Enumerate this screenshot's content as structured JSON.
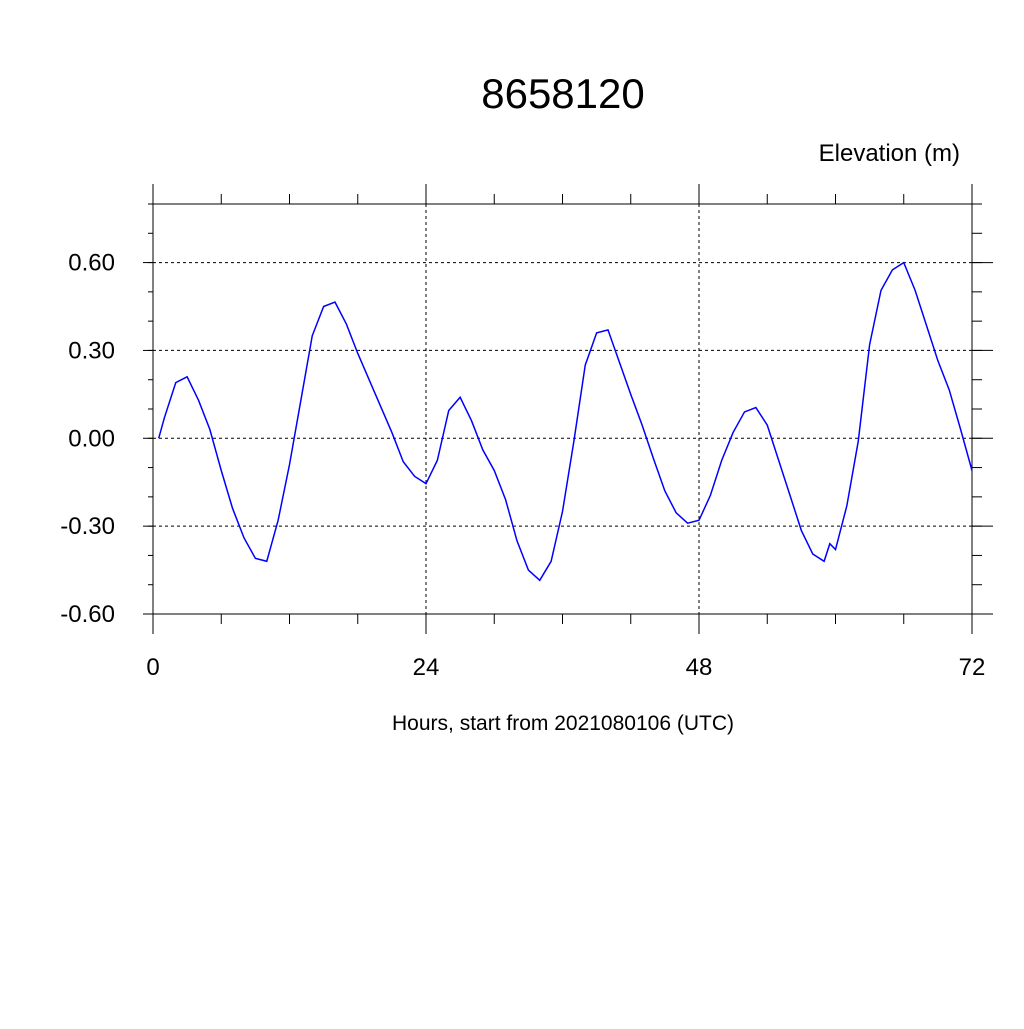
{
  "chart_data": {
    "type": "line",
    "title": "8658120",
    "y_label": "Elevation (m)",
    "x_label": "Hours, start from 2021080106 (UTC)",
    "x": [
      0.5,
      1,
      2,
      3,
      4,
      5,
      6,
      7,
      8,
      9,
      10,
      11,
      12,
      13,
      14,
      15,
      16,
      17,
      18,
      19,
      20,
      21,
      22,
      23,
      24,
      25,
      26,
      27,
      28,
      29,
      30,
      31,
      32,
      33,
      34,
      35,
      36,
      37,
      38,
      39,
      40,
      41,
      42,
      43,
      44,
      45,
      46,
      47,
      48,
      49,
      50,
      51,
      52,
      53,
      54,
      55,
      56,
      57,
      58,
      59,
      59.5,
      60,
      61,
      62,
      63,
      64,
      65,
      66,
      67,
      68,
      69,
      70,
      71,
      72
    ],
    "series": [
      {
        "name": "Elevation",
        "color": "#0000ff",
        "values": [
          0.0,
          0.07,
          0.19,
          0.21,
          0.13,
          0.03,
          -0.11,
          -0.24,
          -0.34,
          -0.41,
          -0.42,
          -0.28,
          -0.09,
          0.13,
          0.35,
          0.45,
          0.465,
          0.39,
          0.29,
          0.2,
          0.11,
          0.02,
          -0.08,
          -0.13,
          -0.155,
          -0.075,
          0.095,
          0.14,
          0.06,
          -0.04,
          -0.11,
          -0.21,
          -0.35,
          -0.45,
          -0.485,
          -0.42,
          -0.25,
          -0.01,
          0.25,
          0.36,
          0.37,
          0.26,
          0.15,
          0.045,
          -0.07,
          -0.18,
          -0.255,
          -0.29,
          -0.28,
          -0.195,
          -0.075,
          0.02,
          0.09,
          0.105,
          0.045,
          -0.075,
          -0.195,
          -0.315,
          -0.395,
          -0.42,
          -0.36,
          -0.38,
          -0.23,
          -0.01,
          0.32,
          0.505,
          0.575,
          0.6,
          0.505,
          0.385,
          0.265,
          0.165,
          0.03,
          -0.11
        ]
      }
    ],
    "xlim": [
      0,
      72
    ],
    "xticks": [
      0,
      24,
      48,
      72
    ],
    "ylim": [
      -0.6,
      0.8
    ],
    "yticks": [
      {
        "value": -0.6,
        "label": "-0.60"
      },
      {
        "value": -0.3,
        "label": "-0.30"
      },
      {
        "value": 0,
        "label": "0.00"
      },
      {
        "value": 0.3,
        "label": "0.30"
      },
      {
        "value": 0.6,
        "label": "0.60"
      }
    ],
    "grid": true
  }
}
